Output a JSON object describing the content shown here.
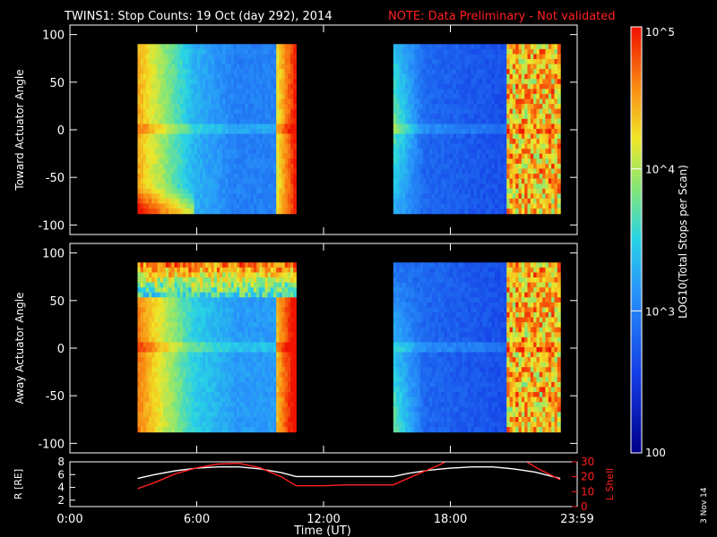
{
  "header": {
    "title": "TWINS1: Stop Counts: 19 Oct (day 292), 2014",
    "note": "NOTE: Data Preliminary - Not validated",
    "note_color": "#ff2020"
  },
  "colorbar": {
    "label": "LOG10(Total Stops per Scan)",
    "ticks": [
      {
        "log": 5,
        "label": "10^5"
      },
      {
        "log": 4,
        "label": "10^4"
      },
      {
        "log": 3,
        "label": "10^3"
      },
      {
        "log": 2,
        "label": "100"
      }
    ],
    "range": [
      2,
      5
    ]
  },
  "footer": {
    "date": "3 Nov 14",
    "xlabel": "Time (UT)",
    "xticks": [
      "0:00",
      "6:00",
      "12:00",
      "18:00",
      "23:59"
    ]
  },
  "chart_data": [
    {
      "type": "heatmap",
      "name": "toward",
      "ylabel": "Toward Actuator Angle",
      "ylim": [
        -110,
        110
      ],
      "yticks": [
        100,
        50,
        0,
        -50,
        -100
      ],
      "xlim": [
        0,
        24
      ],
      "angle_range": [
        -88,
        90
      ],
      "segments": [
        {
          "t_start": 3.2,
          "t_end": 10.7
        },
        {
          "t_start": 15.3,
          "t_end": 23.2
        }
      ]
    },
    {
      "type": "heatmap",
      "name": "away",
      "ylabel": "Away Actuator Angle",
      "ylim": [
        -110,
        110
      ],
      "yticks": [
        100,
        50,
        0,
        -50,
        -100
      ],
      "xlim": [
        0,
        24
      ],
      "angle_range": [
        -88,
        90
      ],
      "segments": [
        {
          "t_start": 3.2,
          "t_end": 10.7
        },
        {
          "t_start": 15.3,
          "t_end": 23.2
        }
      ]
    },
    {
      "type": "line",
      "name": "orbit",
      "xlim": [
        0,
        24
      ],
      "left_axis": {
        "label": "R [RE]",
        "ylim": [
          1,
          8
        ],
        "ticks": [
          2,
          4,
          6,
          8
        ]
      },
      "right_axis": {
        "label": "L Shell",
        "ylim": [
          0,
          30
        ],
        "ticks": [
          0,
          10,
          20,
          30
        ],
        "color": "#ff2020"
      },
      "series": [
        {
          "axis": "left",
          "color": "#ffffff",
          "x": [
            3.2,
            4,
            5,
            6,
            7,
            8,
            9,
            10,
            10.7,
            15.3,
            16,
            17,
            18,
            19,
            20,
            21,
            22,
            23.2
          ],
          "y": [
            5.4,
            6.0,
            6.6,
            7.0,
            7.2,
            7.2,
            6.9,
            6.3,
            5.7,
            5.7,
            6.2,
            6.7,
            7.0,
            7.2,
            7.2,
            6.9,
            6.4,
            5.4
          ]
        },
        {
          "axis": "right",
          "color": "#ff2020",
          "x": [
            3.2,
            4,
            5,
            6,
            7,
            8,
            9,
            10,
            10.7,
            12,
            13,
            14,
            15.3,
            16.5,
            17.5,
            17.9,
            21.5,
            22.2,
            23.2
          ],
          "y": [
            12,
            16,
            22,
            26,
            28.5,
            29,
            26,
            20,
            14,
            14,
            14.5,
            14.5,
            14.5,
            22,
            28,
            31,
            31,
            25,
            18
          ]
        }
      ]
    }
  ]
}
